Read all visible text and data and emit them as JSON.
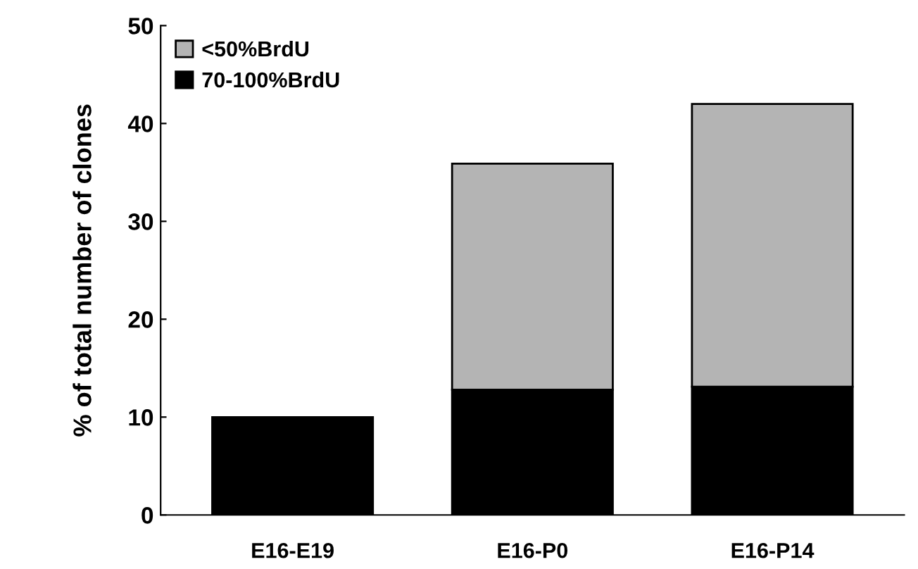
{
  "chart_data": {
    "type": "bar",
    "ylabel": "% of total number of clones",
    "categories": [
      "E16-E19",
      "E16-P0",
      "E16-P14"
    ],
    "stacked": true,
    "series": [
      {
        "name": "70-100%BrdU",
        "color": "#000000",
        "values": [
          10,
          12.8,
          13.1
        ]
      },
      {
        "name": "<50%BrdU",
        "color": "#b4b4b4",
        "values": [
          null,
          23.1,
          28.9
        ]
      }
    ],
    "ylim": [
      0,
      50
    ],
    "yticks": [
      0,
      10,
      20,
      30,
      40,
      50
    ],
    "grid": false,
    "legend": "top left"
  }
}
